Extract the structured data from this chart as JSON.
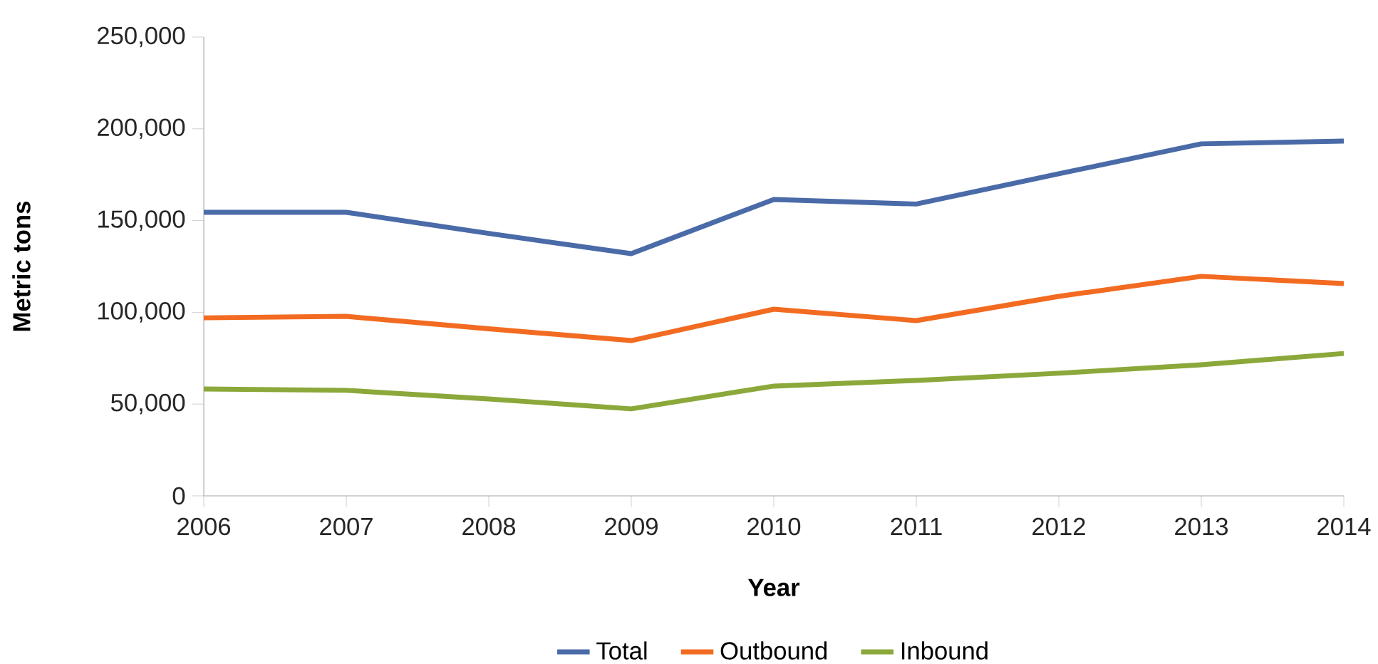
{
  "chart_data": {
    "type": "line",
    "xlabel": "Year",
    "ylabel": "Metric tons",
    "x": [
      2006,
      2007,
      2008,
      2009,
      2010,
      2011,
      2012,
      2013,
      2014
    ],
    "series": [
      {
        "name": "Total",
        "color": "#4a6ba8",
        "values": [
          154500,
          154500,
          143000,
          132000,
          161500,
          159000,
          175500,
          191800,
          193300
        ]
      },
      {
        "name": "Outbound",
        "color": "#f26b21",
        "values": [
          97000,
          97800,
          91000,
          84600,
          101700,
          95500,
          108700,
          119600,
          115700
        ]
      },
      {
        "name": "Inbound",
        "color": "#8ba83a",
        "values": [
          58200,
          57500,
          52800,
          47400,
          59800,
          62900,
          66800,
          71400,
          77600
        ]
      }
    ],
    "xlim": [
      2006,
      2014
    ],
    "ylim": [
      0,
      250000
    ],
    "xticks": [
      2006,
      2007,
      2008,
      2009,
      2010,
      2011,
      2012,
      2013,
      2014
    ],
    "yticks": [
      0,
      {
        "value": 50000,
        "label": "50,000"
      },
      {
        "value": 100000,
        "label": "100,000"
      },
      {
        "value": 150000,
        "label": "150,000"
      },
      {
        "value": 200000,
        "label": "200,000"
      },
      {
        "value": 250000,
        "label": "250,000"
      }
    ],
    "legend": "bottom"
  }
}
